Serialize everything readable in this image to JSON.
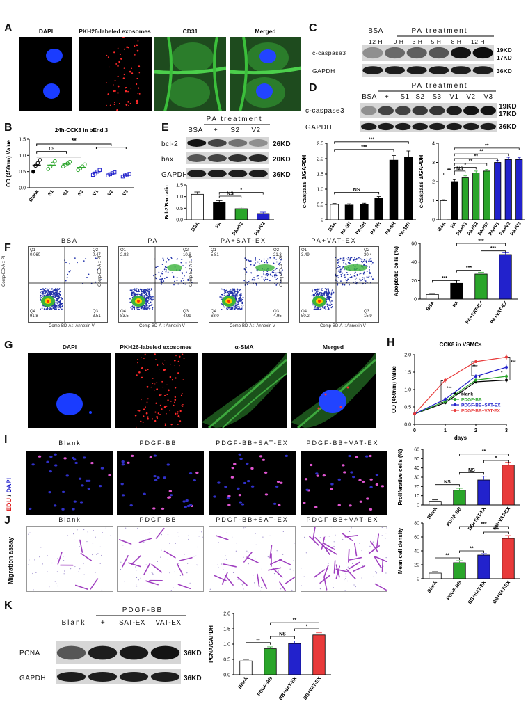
{
  "panels": {
    "A": {
      "letter": "A",
      "labels": [
        "DAPI",
        "PKH26-labeled exosomes",
        "CD31",
        "Merged"
      ]
    },
    "B": {
      "letter": "B"
    },
    "C": {
      "letter": "C",
      "header": "PA treatment",
      "cols": [
        "BSA",
        "12 H",
        "0 H",
        "3 H",
        "5 H",
        "8 H",
        "12 H"
      ],
      "rows": [
        "c-caspase3",
        "GAPDH"
      ],
      "kd": [
        "19KD",
        "17KD",
        "36KD"
      ]
    },
    "D": {
      "letter": "D",
      "header": "PA treatment",
      "cols": [
        "BSA",
        "+",
        "S1",
        "S2",
        "S3",
        "V1",
        "V2",
        "V3"
      ],
      "rows": [
        "c-caspase3",
        "GAPDH"
      ],
      "kd": [
        "19KD",
        "17KD",
        "36KD"
      ]
    },
    "E": {
      "letter": "E",
      "header": "PA treatment",
      "cols": [
        "BSA",
        "+",
        "S2",
        "V2"
      ],
      "rows": [
        "bcl-2",
        "bax",
        "GAPDH"
      ],
      "kd": [
        "26KD",
        "20KD",
        "36KD"
      ]
    },
    "F": {
      "letter": "F",
      "titles": [
        "BSA",
        "PA",
        "PA+SAT-EX",
        "PA+VAT-EX"
      ],
      "quads": [
        [
          "0.060",
          "0.47",
          "91.8",
          "3.51"
        ],
        [
          "2.82",
          "10.8",
          "83.5",
          "4.99"
        ],
        [
          "5.81",
          "21.3",
          "68.0",
          "4.95"
        ],
        [
          "3.49",
          "30.4",
          "50.2",
          "15.9"
        ]
      ],
      "q_names": [
        "Q1",
        "Q2",
        "Q3",
        "Q4"
      ],
      "axis_x": "Comp-BD-A :: Annexin V",
      "axis_y": "Comp-ED-A :: PI"
    },
    "G": {
      "letter": "G",
      "labels": [
        "DAPI",
        "PKH26-labeled exosomes",
        "α-SMA",
        "Merged"
      ]
    },
    "H": {
      "letter": "H"
    },
    "I": {
      "letter": "I",
      "titles": [
        "Blank",
        "PDGF-BB",
        "PDGF-BB+SAT-EX",
        "PDGF-BB+VAT-EX"
      ],
      "side_edu": "EDU",
      "side_sep": " / ",
      "side_dapi": "DAPI"
    },
    "J": {
      "letter": "J",
      "titles": [
        "Blank",
        "PDGF-BB",
        "PDGF-BB+SAT-EX",
        "PDGF-BB+VAT-EX"
      ],
      "side": "Migration assay"
    },
    "K": {
      "letter": "K",
      "header": "PDGF-BB",
      "cols": [
        "Blank",
        "+",
        "SAT-EX",
        "VAT-EX"
      ],
      "rows": [
        "PCNA",
        "GAPDH"
      ],
      "kd": [
        "36KD",
        "36KD"
      ]
    }
  },
  "chart_data": [
    {
      "id": "B",
      "type": "scatter",
      "title": "24h-CCK8 in bEnd.3",
      "ylabel": "OD (450nm) Value",
      "ylim": [
        0,
        1.5
      ],
      "yticks": [
        "0.0",
        "0.5",
        "1.0",
        "1.5"
      ],
      "categories": [
        "Blank",
        "S1",
        "S2",
        "S3",
        "V1",
        "V2",
        "V3"
      ],
      "values": [
        0.7,
        0.7,
        0.73,
        0.63,
        0.47,
        0.43,
        0.39
      ],
      "points": [
        [
          0.5,
          0.68,
          0.76,
          0.86
        ],
        [
          0.58,
          0.66,
          0.74,
          0.82
        ],
        [
          0.66,
          0.71,
          0.75,
          0.8
        ],
        [
          0.55,
          0.6,
          0.66,
          0.72
        ],
        [
          0.4,
          0.44,
          0.5,
          0.55
        ],
        [
          0.38,
          0.42,
          0.45,
          0.48
        ],
        [
          0.35,
          0.38,
          0.41,
          0.43
        ]
      ],
      "colors": [
        "#000000",
        "#2aa52a",
        "#2aa52a",
        "#2aa52a",
        "#2222cc",
        "#2222cc",
        "#2222cc"
      ],
      "annotations": [
        "**",
        "ns"
      ]
    },
    {
      "id": "C-bar",
      "type": "bar",
      "ylabel": "c-caspase 3/GAPDH",
      "ylim": [
        0,
        2.5
      ],
      "yticks": [
        "0",
        "0.5",
        "1.0",
        "1.5",
        "2.0",
        "2.5"
      ],
      "categories": [
        "BSA",
        "PA-0H",
        "PA-3H",
        "PA-5H",
        "PA-8H",
        "PA-12H"
      ],
      "values": [
        0.5,
        0.48,
        0.5,
        0.7,
        1.95,
        2.05
      ],
      "errors": [
        0.03,
        0.04,
        0.04,
        0.06,
        0.15,
        0.2
      ],
      "colors": [
        "#ffffff",
        "#000000",
        "#000000",
        "#000000",
        "#000000",
        "#000000"
      ],
      "annotations": [
        "***",
        "***",
        "NS"
      ]
    },
    {
      "id": "D-bar",
      "type": "bar",
      "ylabel": "c-caspase 3/GAPDH",
      "ylim": [
        0,
        4
      ],
      "yticks": [
        "0",
        "1",
        "2",
        "3",
        "4"
      ],
      "categories": [
        "BSA",
        "PA",
        "PA+S1",
        "PA+S2",
        "PA+S3",
        "PA+V1",
        "PA+V2",
        "PA+V3"
      ],
      "values": [
        1.0,
        2.0,
        2.2,
        2.45,
        2.55,
        3.0,
        3.15,
        3.15
      ],
      "errors": [
        0.05,
        0.1,
        0.1,
        0.1,
        0.08,
        0.1,
        0.12,
        0.1
      ],
      "colors": [
        "#ffffff",
        "#000000",
        "#2aa52a",
        "#2aa52a",
        "#2aa52a",
        "#2222cc",
        "#2222cc",
        "#2222cc"
      ],
      "annotations": [
        "**",
        "NS",
        "*",
        "**",
        "**",
        "**",
        "**"
      ]
    },
    {
      "id": "E-bar",
      "type": "bar",
      "ylabel": "Bcl-2/Bax ratio",
      "ylim": [
        0,
        1.5
      ],
      "yticks": [
        "0.0",
        "0.5",
        "1.0",
        "1.5"
      ],
      "categories": [
        "BSA",
        "PA",
        "PA+S2",
        "PA+V2"
      ],
      "values": [
        1.1,
        0.75,
        0.48,
        0.27
      ],
      "errors": [
        0.1,
        0.08,
        0.07,
        0.06
      ],
      "colors": [
        "#ffffff",
        "#000000",
        "#2aa52a",
        "#2222cc"
      ],
      "annotations": [
        "NS",
        "*"
      ]
    },
    {
      "id": "F-bar",
      "type": "bar",
      "ylabel": "Apoptotic cells (%)",
      "ylim": [
        0,
        60
      ],
      "yticks": [
        "0",
        "20",
        "40",
        "60"
      ],
      "categories": [
        "BSA",
        "PA",
        "PA+SAT-EX",
        "PA+VAT-EX"
      ],
      "values": [
        5,
        17,
        27,
        48
      ],
      "errors": [
        1,
        3,
        2,
        2
      ],
      "colors": [
        "#ffffff",
        "#000000",
        "#2aa52a",
        "#2222cc"
      ],
      "annotations": [
        "***",
        "***",
        "***",
        "***"
      ]
    },
    {
      "id": "H",
      "type": "line",
      "title": "CCK8 in VSMCs",
      "ylabel": "OD (450nm) Value",
      "xlabel": "days",
      "ylim": [
        0,
        2.0
      ],
      "yticks": [
        "0.0",
        "0.5",
        "1.0",
        "1.5",
        "2.0"
      ],
      "x": [
        0,
        1,
        2,
        3
      ],
      "xticks": [
        "0",
        "1",
        "2",
        "3"
      ],
      "series": [
        {
          "name": "blank",
          "color": "#000000",
          "values": [
            0.3,
            0.62,
            1.22,
            1.27
          ],
          "errors": [
            0.02,
            0.05,
            0.05,
            0.06
          ]
        },
        {
          "name": "PDGF-BB",
          "color": "#2aa52a",
          "values": [
            0.3,
            0.66,
            1.27,
            1.38
          ],
          "errors": [
            0.02,
            0.05,
            0.05,
            0.06
          ]
        },
        {
          "name": "PDGF-BB+SAT-EX",
          "color": "#2222cc",
          "values": [
            0.3,
            0.72,
            1.38,
            1.64
          ],
          "errors": [
            0.02,
            0.06,
            0.06,
            0.07
          ]
        },
        {
          "name": "PDGF-BB+VAT-EX",
          "color": "#e83a3a",
          "values": [
            0.3,
            1.27,
            1.8,
            1.93
          ],
          "errors": [
            0.02,
            0.07,
            0.03,
            0.08
          ]
        }
      ],
      "annotations": [
        "***",
        "***",
        "***",
        "*",
        "*"
      ]
    },
    {
      "id": "I-bar",
      "type": "bar",
      "ylabel": "Proliferative cells (%)",
      "ylim": [
        0,
        60
      ],
      "yticks": [
        "0",
        "10",
        "20",
        "30",
        "40",
        "50",
        "60"
      ],
      "categories": [
        "Blank",
        "PDGF-BB",
        "BB+SAT-EX",
        "BB+VAT-EX"
      ],
      "values": [
        4,
        16,
        27,
        43
      ],
      "errors": [
        1.5,
        2,
        4,
        3
      ],
      "colors": [
        "#ffffff",
        "#2aa52a",
        "#2222cc",
        "#e83a3a"
      ],
      "annotations": [
        "NS",
        "NS",
        "*",
        "**"
      ]
    },
    {
      "id": "J-bar",
      "type": "bar",
      "ylabel": "Mean cell density",
      "ylim": [
        0,
        80
      ],
      "yticks": [
        "0",
        "20",
        "40",
        "60",
        "80"
      ],
      "categories": [
        "Blank",
        "PDGF-BB",
        "BB+SAT-EX",
        "BB+VAT-EX"
      ],
      "values": [
        8,
        23,
        34,
        58
      ],
      "errors": [
        2,
        3,
        2,
        4
      ],
      "colors": [
        "#ffffff",
        "#2aa52a",
        "#2222cc",
        "#e83a3a"
      ],
      "annotations": [
        "**",
        "**",
        "***",
        "***"
      ]
    },
    {
      "id": "K-bar",
      "type": "bar",
      "ylabel": "PCNA/GAPDH",
      "ylim": [
        0,
        2.0
      ],
      "yticks": [
        "0.0",
        "0.5",
        "1.0",
        "1.5",
        "2.0"
      ],
      "categories": [
        "Blank",
        "PDGF-BB",
        "BB+SAT-EX",
        "BB+VAT-EX"
      ],
      "values": [
        0.45,
        0.85,
        1.02,
        1.3
      ],
      "errors": [
        0.05,
        0.06,
        0.08,
        0.07
      ],
      "colors": [
        "#ffffff",
        "#2aa52a",
        "#2222cc",
        "#e83a3a"
      ],
      "annotations": [
        "**",
        "NS",
        "*",
        "**"
      ]
    }
  ]
}
